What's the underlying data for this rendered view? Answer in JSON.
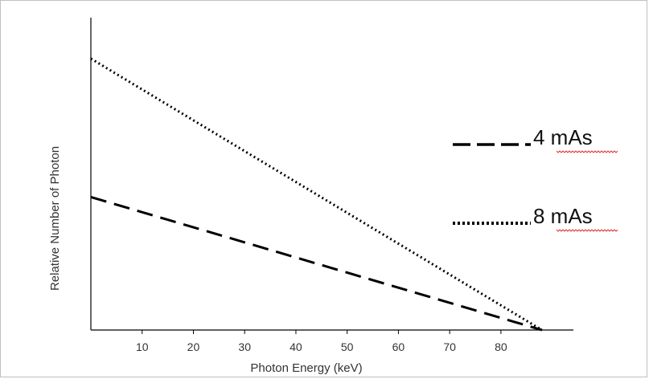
{
  "chart_data": {
    "type": "line",
    "title": "",
    "xlabel": "Photon Energy (keV)",
    "ylabel": "Relative Number  of Photon",
    "xlim": [
      0,
      91
    ],
    "ylim": [
      0,
      1
    ],
    "x_ticks": [
      10,
      20,
      30,
      40,
      50,
      60,
      70,
      80
    ],
    "grid": false,
    "legend_placement": "right",
    "series": [
      {
        "name": "4 mAs",
        "style": "dashed",
        "color": "#000000",
        "x": [
          0,
          88
        ],
        "y": [
          0.49,
          0.0
        ]
      },
      {
        "name": "8 mAs",
        "style": "dotted",
        "color": "#000000",
        "x": [
          0,
          88
        ],
        "y": [
          1.0,
          0.0
        ]
      }
    ]
  }
}
